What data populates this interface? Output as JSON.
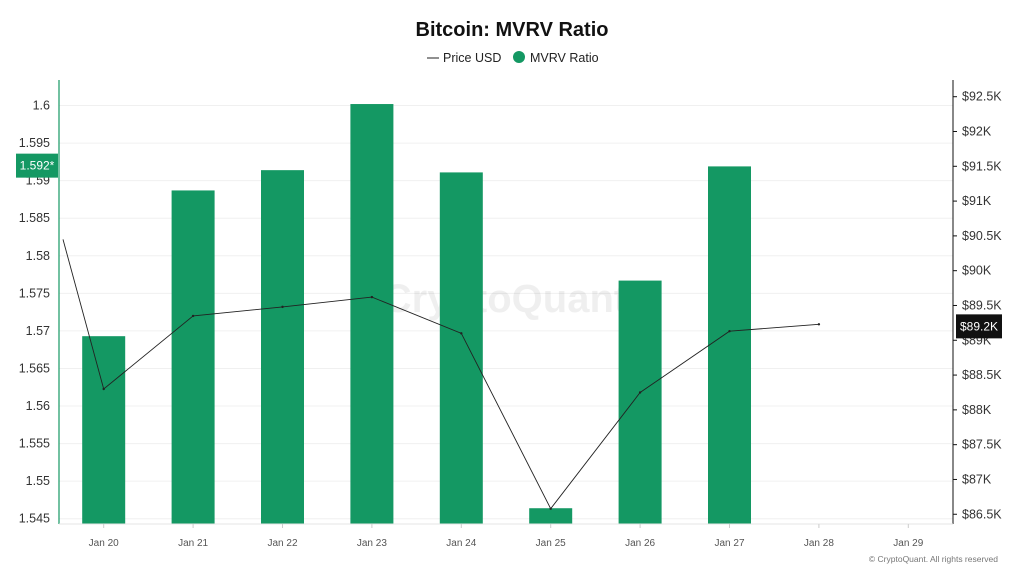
{
  "chart_data": {
    "type": "bar",
    "title": "Bitcoin: MVRV Ratio",
    "legend": {
      "placement": "top-center",
      "entries": [
        "Price USD",
        "MVRV Ratio"
      ]
    },
    "categories": [
      "Jan 20",
      "Jan 21",
      "Jan 22",
      "Jan 23",
      "Jan 24",
      "Jan 25",
      "Jan 26",
      "Jan 27",
      "Jan 28",
      "Jan 29"
    ],
    "series": [
      {
        "name": "MVRV Ratio",
        "type": "bar",
        "axis": "left",
        "color": "#149863",
        "values": [
          1.5693,
          1.5887,
          1.5914,
          1.6002,
          1.5911,
          1.5464,
          1.5767,
          1.5919,
          null,
          null
        ]
      },
      {
        "name": "Price USD",
        "type": "line",
        "axis": "right",
        "color": "#222222",
        "start_value": 90450,
        "values": [
          88300,
          89350,
          89480,
          89620,
          89100,
          86580,
          88250,
          89130,
          89230,
          null
        ]
      }
    ],
    "left_axis": {
      "ylim": [
        1.5443,
        1.6034
      ],
      "ticks": [
        "1.545",
        "1.55",
        "1.555",
        "1.56",
        "1.565",
        "1.57",
        "1.575",
        "1.58",
        "1.585",
        "1.59",
        "1.595",
        "1.6"
      ],
      "current_badge": {
        "value": 1.592,
        "label": "1.592*",
        "color": "#149863"
      }
    },
    "right_axis": {
      "ylim": [
        86360,
        92740
      ],
      "ticks": [
        "$86.5K",
        "$87K",
        "$87.5K",
        "$88K",
        "$88.5K",
        "$89K",
        "$89.5K",
        "$90K",
        "$90.5K",
        "$91K",
        "$91.5K",
        "$92K",
        "$92.5K"
      ],
      "current_badge": {
        "value": 89200,
        "label": "$89.2K",
        "color": "#111111"
      }
    },
    "grid": true,
    "watermark": "CryptoQuant",
    "copyright": "© CryptoQuant. All rights reserved"
  }
}
